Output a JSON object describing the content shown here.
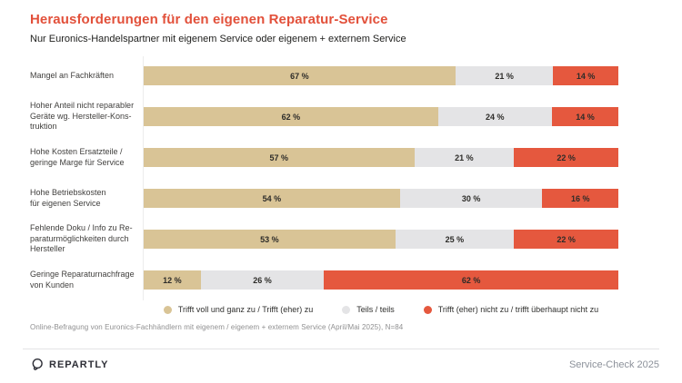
{
  "header": {
    "title": "Herausforderungen für den eigenen Reparatur-Service",
    "subtitle": "Nur Euronics-Handelspartner mit eigenem Service oder eigenem + externem Service"
  },
  "chart_data": {
    "type": "bar",
    "orientation": "horizontal",
    "stacked": true,
    "value_suffix": " %",
    "categories": [
      "Mangel an Fachkräften",
      "Hoher Anteil nicht reparabler\nGeräte wg. Hersteller-Kons-\ntruktion",
      "Hohe Kosten Ersatzteile /\ngeringe Marge für Service",
      "Hohe Betriebskosten\nfür eigenen Service",
      "Fehlende Doku / Info zu Re-\nparaturmöglichkeiten durch\nHersteller",
      "Geringe Reparaturnachfrage\nvon Kunden"
    ],
    "series": [
      {
        "name": "Trifft voll und ganz zu / Trifft (eher) zu",
        "color": "#d9c496",
        "values": [
          67,
          62,
          57,
          54,
          53,
          12
        ]
      },
      {
        "name": "Teils / teils",
        "color": "#e4e4e6",
        "values": [
          21,
          24,
          21,
          30,
          25,
          26
        ]
      },
      {
        "name": "Trifft (eher) nicht zu / trifft überhaupt nicht zu",
        "color": "#e5583e",
        "values": [
          14,
          14,
          22,
          16,
          22,
          62
        ]
      }
    ],
    "legend_position": "bottom",
    "grid": false
  },
  "footnote": "Online-Befragung von Euronics-Fachhändlern mit eigenem / eigenem + externem Service (April/Mai 2025), N=84",
  "footer": {
    "brand": "REPARTLY",
    "logo_icon": "repartly-circle-mark",
    "right_text": "Service-Check 2025"
  },
  "colors": {
    "title_accent": "#e2503a",
    "agree": "#d9c496",
    "neutral": "#e4e4e6",
    "disagree": "#e5583e"
  }
}
